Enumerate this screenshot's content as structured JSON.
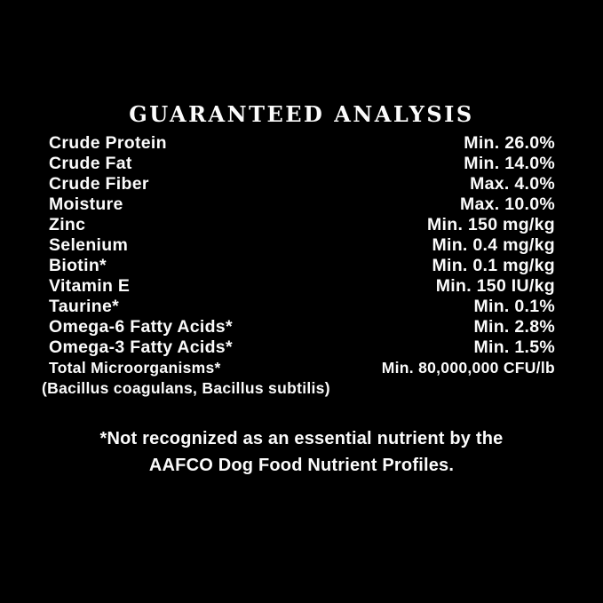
{
  "panel": {
    "background": "#000000",
    "text_color": "#fbfbfb"
  },
  "title": "GUARANTEED ANALYSIS",
  "analysis": {
    "rows": [
      {
        "label": "Crude Protein",
        "value": "Min. 26.0%"
      },
      {
        "label": "Crude Fat",
        "value": "Min. 14.0%"
      },
      {
        "label": "Crude Fiber",
        "value": "Max. 4.0%"
      },
      {
        "label": "Moisture",
        "value": "Max. 10.0%"
      },
      {
        "label": "Zinc",
        "value": "Min. 150 mg/kg"
      },
      {
        "label": "Selenium",
        "value": "Min. 0.4 mg/kg"
      },
      {
        "label": "Biotin*",
        "value": "Min. 0.1 mg/kg"
      },
      {
        "label": "Vitamin E",
        "value": "Min. 150 IU/kg"
      },
      {
        "label": "Taurine*",
        "value": "Min. 0.1%"
      },
      {
        "label": "Omega-6 Fatty Acids*",
        "value": "Min. 2.8%"
      },
      {
        "label": "Omega-3 Fatty Acids*",
        "value": "Min. 1.5%"
      },
      {
        "label": "Total Microorganisms*",
        "value": "Min. 80,000,000 CFU/lb"
      }
    ],
    "species_note": "(Bacillus coagulans, Bacillus subtilis)"
  },
  "footnote": {
    "line1": "*Not recognized as an essential nutrient by the",
    "line2": "AAFCO Dog Food Nutrient Profiles."
  }
}
